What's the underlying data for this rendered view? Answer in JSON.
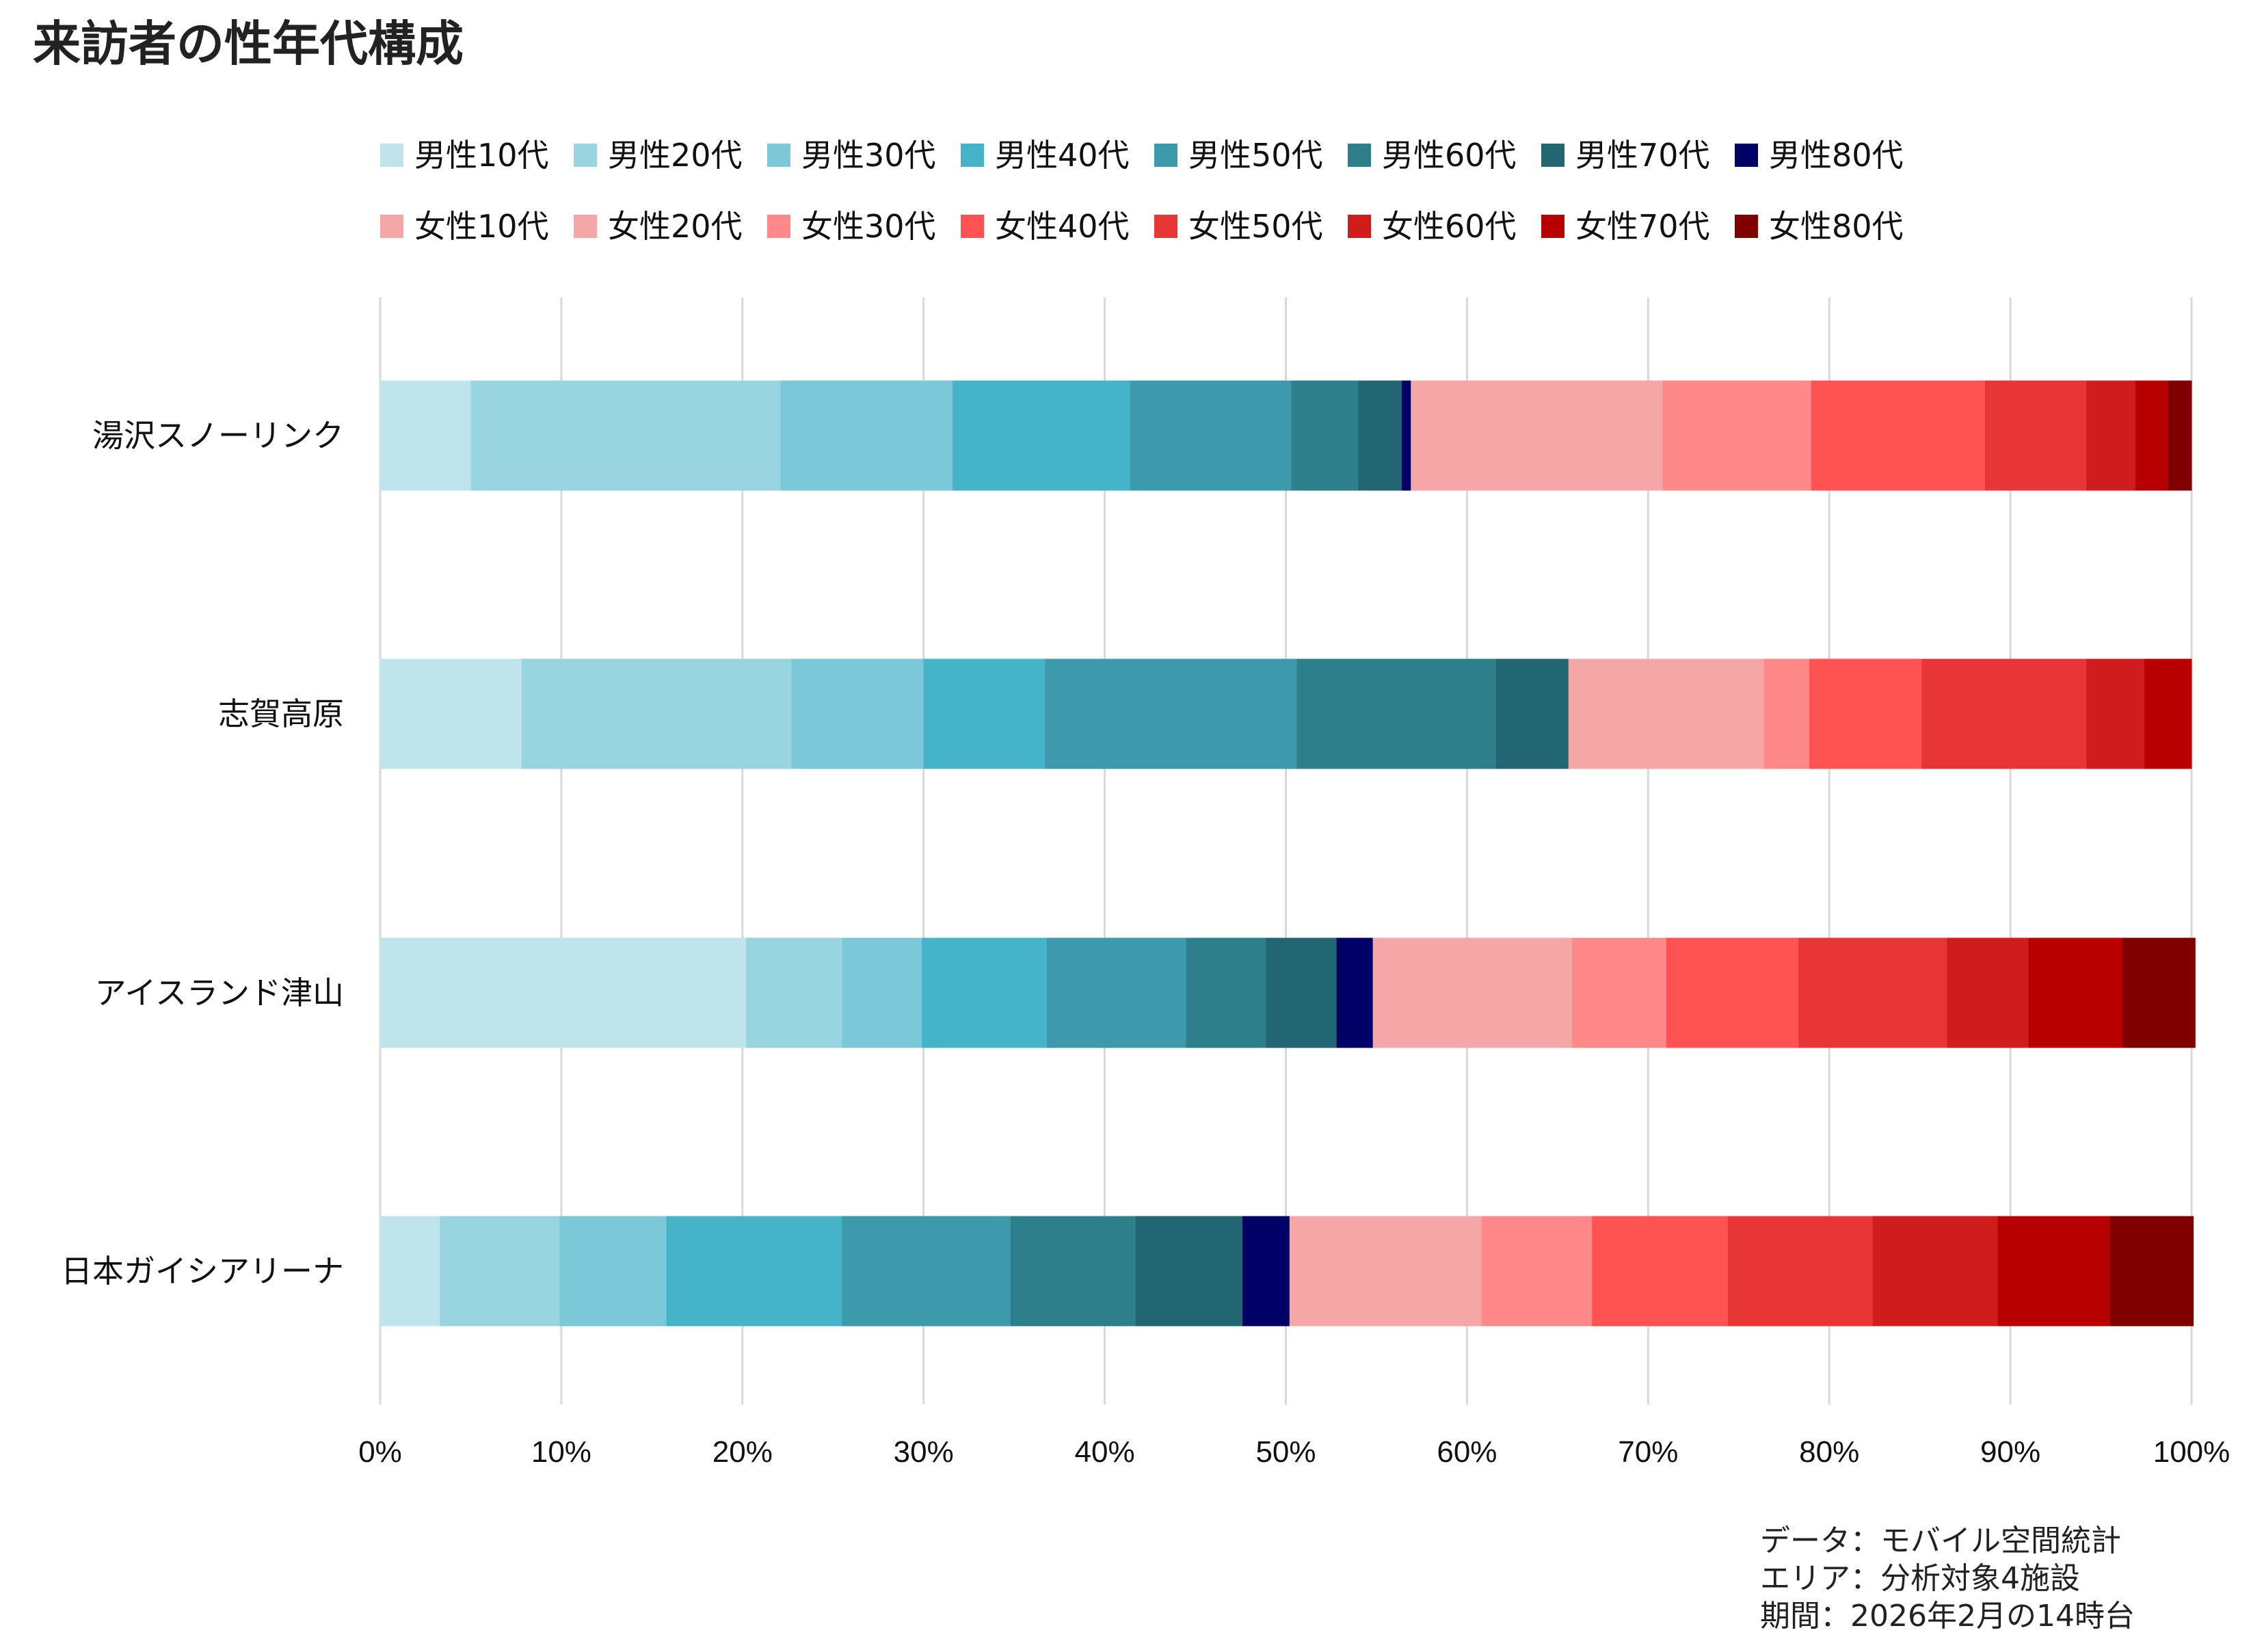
{
  "chart_data": {
    "type": "bar",
    "orientation": "horizontal",
    "stacked": "percent",
    "title": "来訪者の性年代構成",
    "xlabel": "",
    "ylabel": "",
    "xlim": [
      0,
      100
    ],
    "x_ticks": [
      "0%",
      "10%",
      "20%",
      "30%",
      "40%",
      "50%",
      "60%",
      "70%",
      "80%",
      "90%",
      "100%"
    ],
    "grid": "vertical",
    "legend_position": "top",
    "categories": [
      "湯沢スノーリンク",
      "志賀高原",
      "アイスランド津山",
      "日本ガイシアリーナ"
    ],
    "series": [
      {
        "name": "男性10代",
        "color": "#BFE4EC",
        "values": [
          5.0,
          7.8,
          20.2,
          3.3
        ]
      },
      {
        "name": "男性20代",
        "color": "#98D5E0",
        "values": [
          17.1,
          14.9,
          5.3,
          6.6
        ]
      },
      {
        "name": "男性30代",
        "color": "#7BC9D8",
        "values": [
          9.5,
          7.3,
          4.4,
          5.9
        ]
      },
      {
        "name": "男性40代",
        "color": "#45B4C8",
        "values": [
          9.8,
          6.7,
          6.9,
          9.7
        ]
      },
      {
        "name": "男性50代",
        "color": "#3D9AAC",
        "values": [
          8.9,
          13.9,
          7.7,
          9.3
        ]
      },
      {
        "name": "男性60代",
        "color": "#2E7F8C",
        "values": [
          3.7,
          11.0,
          4.4,
          6.9
        ]
      },
      {
        "name": "男性70代",
        "color": "#216672",
        "values": [
          2.4,
          4.0,
          3.9,
          5.9
        ]
      },
      {
        "name": "男性80代",
        "color": "#000066",
        "values": [
          0.5,
          0.0,
          2.0,
          2.6
        ]
      },
      {
        "name": "女性10代",
        "color": "#F5A6A6",
        "values": [
          7.0,
          5.4,
          5.5,
          5.3
        ]
      },
      {
        "name": "女性20代",
        "color": "#F5A6A6",
        "values": [
          6.9,
          5.4,
          5.5,
          5.3
        ]
      },
      {
        "name": "女性30代",
        "color": "#FF8888",
        "values": [
          8.2,
          2.5,
          5.2,
          6.1
        ]
      },
      {
        "name": "女性40代",
        "color": "#FF5252",
        "values": [
          9.6,
          6.2,
          7.3,
          7.5
        ]
      },
      {
        "name": "女性50代",
        "color": "#E83535",
        "values": [
          5.6,
          9.1,
          8.2,
          8.0
        ]
      },
      {
        "name": "女性60代",
        "color": "#D01C1C",
        "values": [
          2.7,
          3.2,
          4.5,
          6.9
        ]
      },
      {
        "name": "女性70代",
        "color": "#B80000",
        "values": [
          1.8,
          2.6,
          5.2,
          6.2
        ]
      },
      {
        "name": "女性80代",
        "color": "#800000",
        "values": [
          1.3,
          0.0,
          4.0,
          4.6
        ]
      }
    ],
    "caption": [
      "データ：モバイル空間統計",
      "エリア：分析対象4施設",
      "期間：2026年2月の14時台"
    ]
  }
}
